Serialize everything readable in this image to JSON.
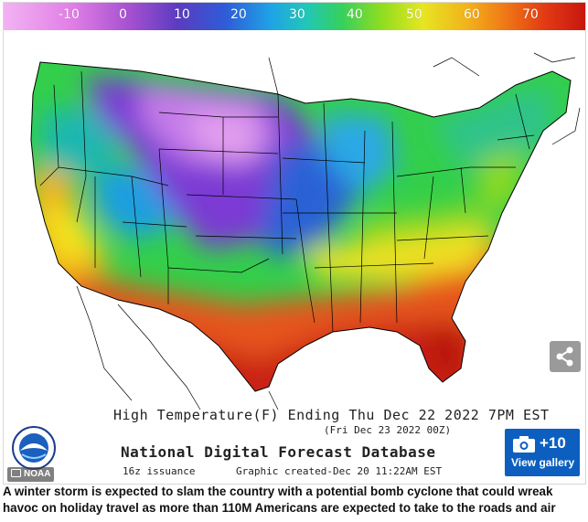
{
  "legend": {
    "ticks": [
      {
        "label": "-10",
        "value": -10
      },
      {
        "label": "0",
        "value": 0
      },
      {
        "label": "10",
        "value": 10
      },
      {
        "label": "20",
        "value": 20
      },
      {
        "label": "30",
        "value": 30
      },
      {
        "label": "40",
        "value": 40
      },
      {
        "label": "50",
        "value": 50
      },
      {
        "label": "60",
        "value": 60
      },
      {
        "label": "70",
        "value": 70
      }
    ]
  },
  "map": {
    "title_line": "High Temperature(F)  Ending Thu Dec 22 2022   7PM EST",
    "valid_line": "(Fri Dec 23 2022 00Z)",
    "source_line": "National Digital Forecast Database",
    "issuance": "16z issuance",
    "created": "Graphic created-Dec 20 11:22AM EST"
  },
  "colors": {
    "cold_extreme": "#c77ff0",
    "frigid": "#7a3fd1",
    "cool": "#27b1e8",
    "mild": "#2fd060",
    "warm": "#f2df1e",
    "hot": "#e33a14",
    "accent_button": "#0d5fbf"
  },
  "credit": {
    "label": "NOAA"
  },
  "gallery": {
    "count": "+10",
    "label": "View gallery"
  },
  "caption": "A winter storm is expected to slam the country with a potential bomb cyclone that could wreak havoc on holiday travel as more than 110M Americans are expected to take to the roads and air"
}
